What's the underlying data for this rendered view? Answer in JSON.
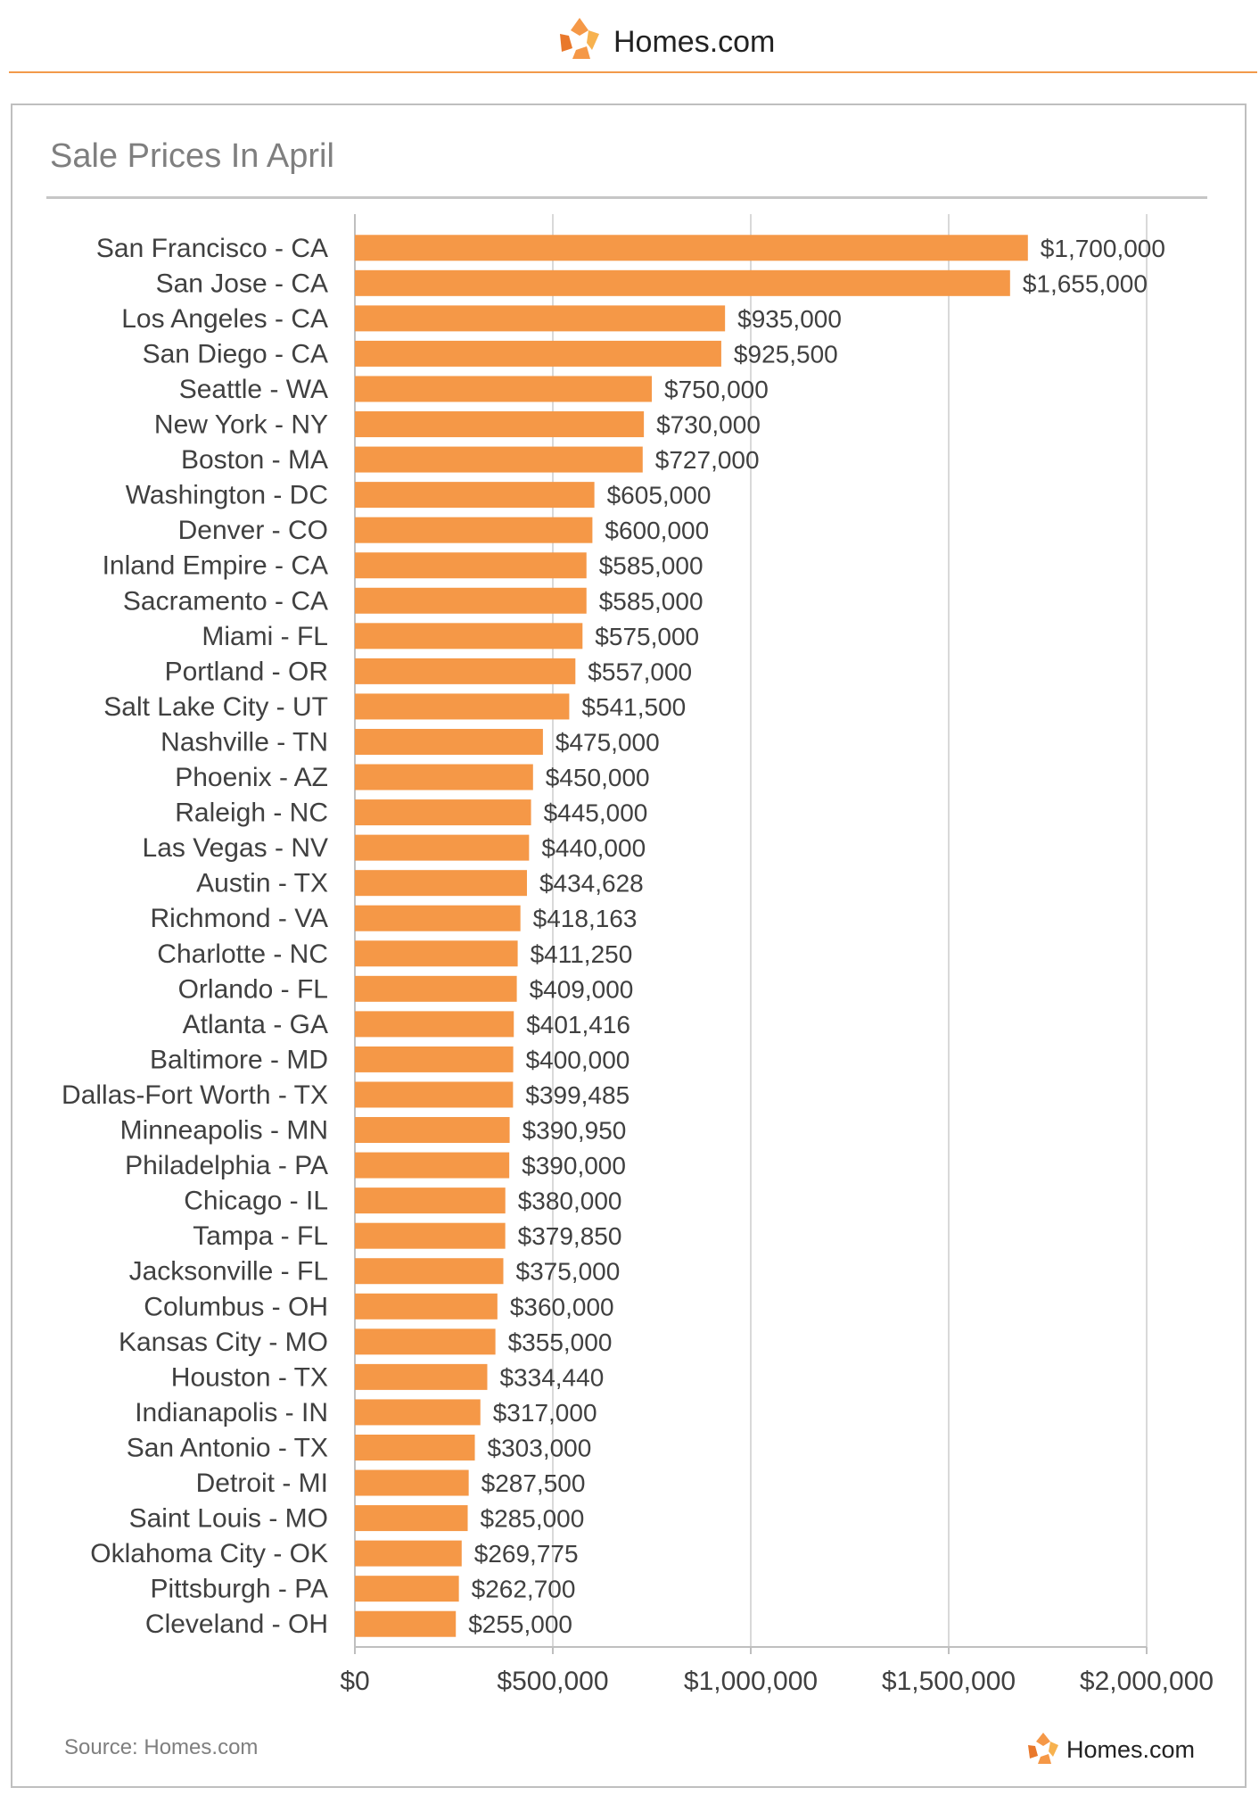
{
  "brand": {
    "name": "Homes.com"
  },
  "source": "Source: Homes.com",
  "colors": {
    "bar": "#f59847",
    "accent": "#f29a4a",
    "text": "#404040",
    "grid": "#d9d9d9"
  },
  "chart_data": {
    "type": "bar",
    "orientation": "horizontal",
    "title": "Sale Prices In April",
    "xlabel": "",
    "ylabel": "",
    "xlim": [
      0,
      2000000
    ],
    "grid": true,
    "x_ticks": [
      "$0",
      "$500,000",
      "$1,000,000",
      "$1,500,000",
      "$2,000,000"
    ],
    "categories": [
      "San Francisco - CA",
      "San Jose - CA",
      "Los Angeles - CA",
      "San Diego - CA",
      "Seattle - WA",
      "New York - NY",
      "Boston - MA",
      "Washington - DC",
      "Denver - CO",
      "Inland Empire - CA",
      "Sacramento - CA",
      "Miami - FL",
      "Portland - OR",
      "Salt Lake City - UT",
      "Nashville - TN",
      "Phoenix - AZ",
      "Raleigh - NC",
      "Las Vegas - NV",
      "Austin - TX",
      "Richmond - VA",
      "Charlotte - NC",
      "Orlando - FL",
      "Atlanta - GA",
      "Baltimore - MD",
      "Dallas-Fort Worth - TX",
      "Minneapolis - MN",
      "Philadelphia - PA",
      "Chicago - IL",
      "Tampa - FL",
      "Jacksonville - FL",
      "Columbus - OH",
      "Kansas City - MO",
      "Houston - TX",
      "Indianapolis - IN",
      "San Antonio - TX",
      "Detroit - MI",
      "Saint Louis - MO",
      "Oklahoma City - OK",
      "Pittsburgh - PA",
      "Cleveland - OH"
    ],
    "values": [
      1700000,
      1655000,
      935000,
      925500,
      750000,
      730000,
      727000,
      605000,
      600000,
      585000,
      585000,
      575000,
      557000,
      541500,
      475000,
      450000,
      445000,
      440000,
      434628,
      418163,
      411250,
      409000,
      401416,
      400000,
      399485,
      390950,
      390000,
      380000,
      379850,
      375000,
      360000,
      355000,
      334440,
      317000,
      303000,
      287500,
      285000,
      269775,
      262700,
      255000
    ],
    "value_labels": [
      "$1,700,000",
      "$1,655,000",
      "$935,000",
      "$925,500",
      "$750,000",
      "$730,000",
      "$727,000",
      "$605,000",
      "$600,000",
      "$585,000",
      "$585,000",
      "$575,000",
      "$557,000",
      "$541,500",
      "$475,000",
      "$450,000",
      "$445,000",
      "$440,000",
      "$434,628",
      "$418,163",
      "$411,250",
      "$409,000",
      "$401,416",
      "$400,000",
      "$399,485",
      "$390,950",
      "$390,000",
      "$380,000",
      "$379,850",
      "$375,000",
      "$360,000",
      "$355,000",
      "$334,440",
      "$317,000",
      "$303,000",
      "$287,500",
      "$285,000",
      "$269,775",
      "$262,700",
      "$255,000"
    ]
  }
}
